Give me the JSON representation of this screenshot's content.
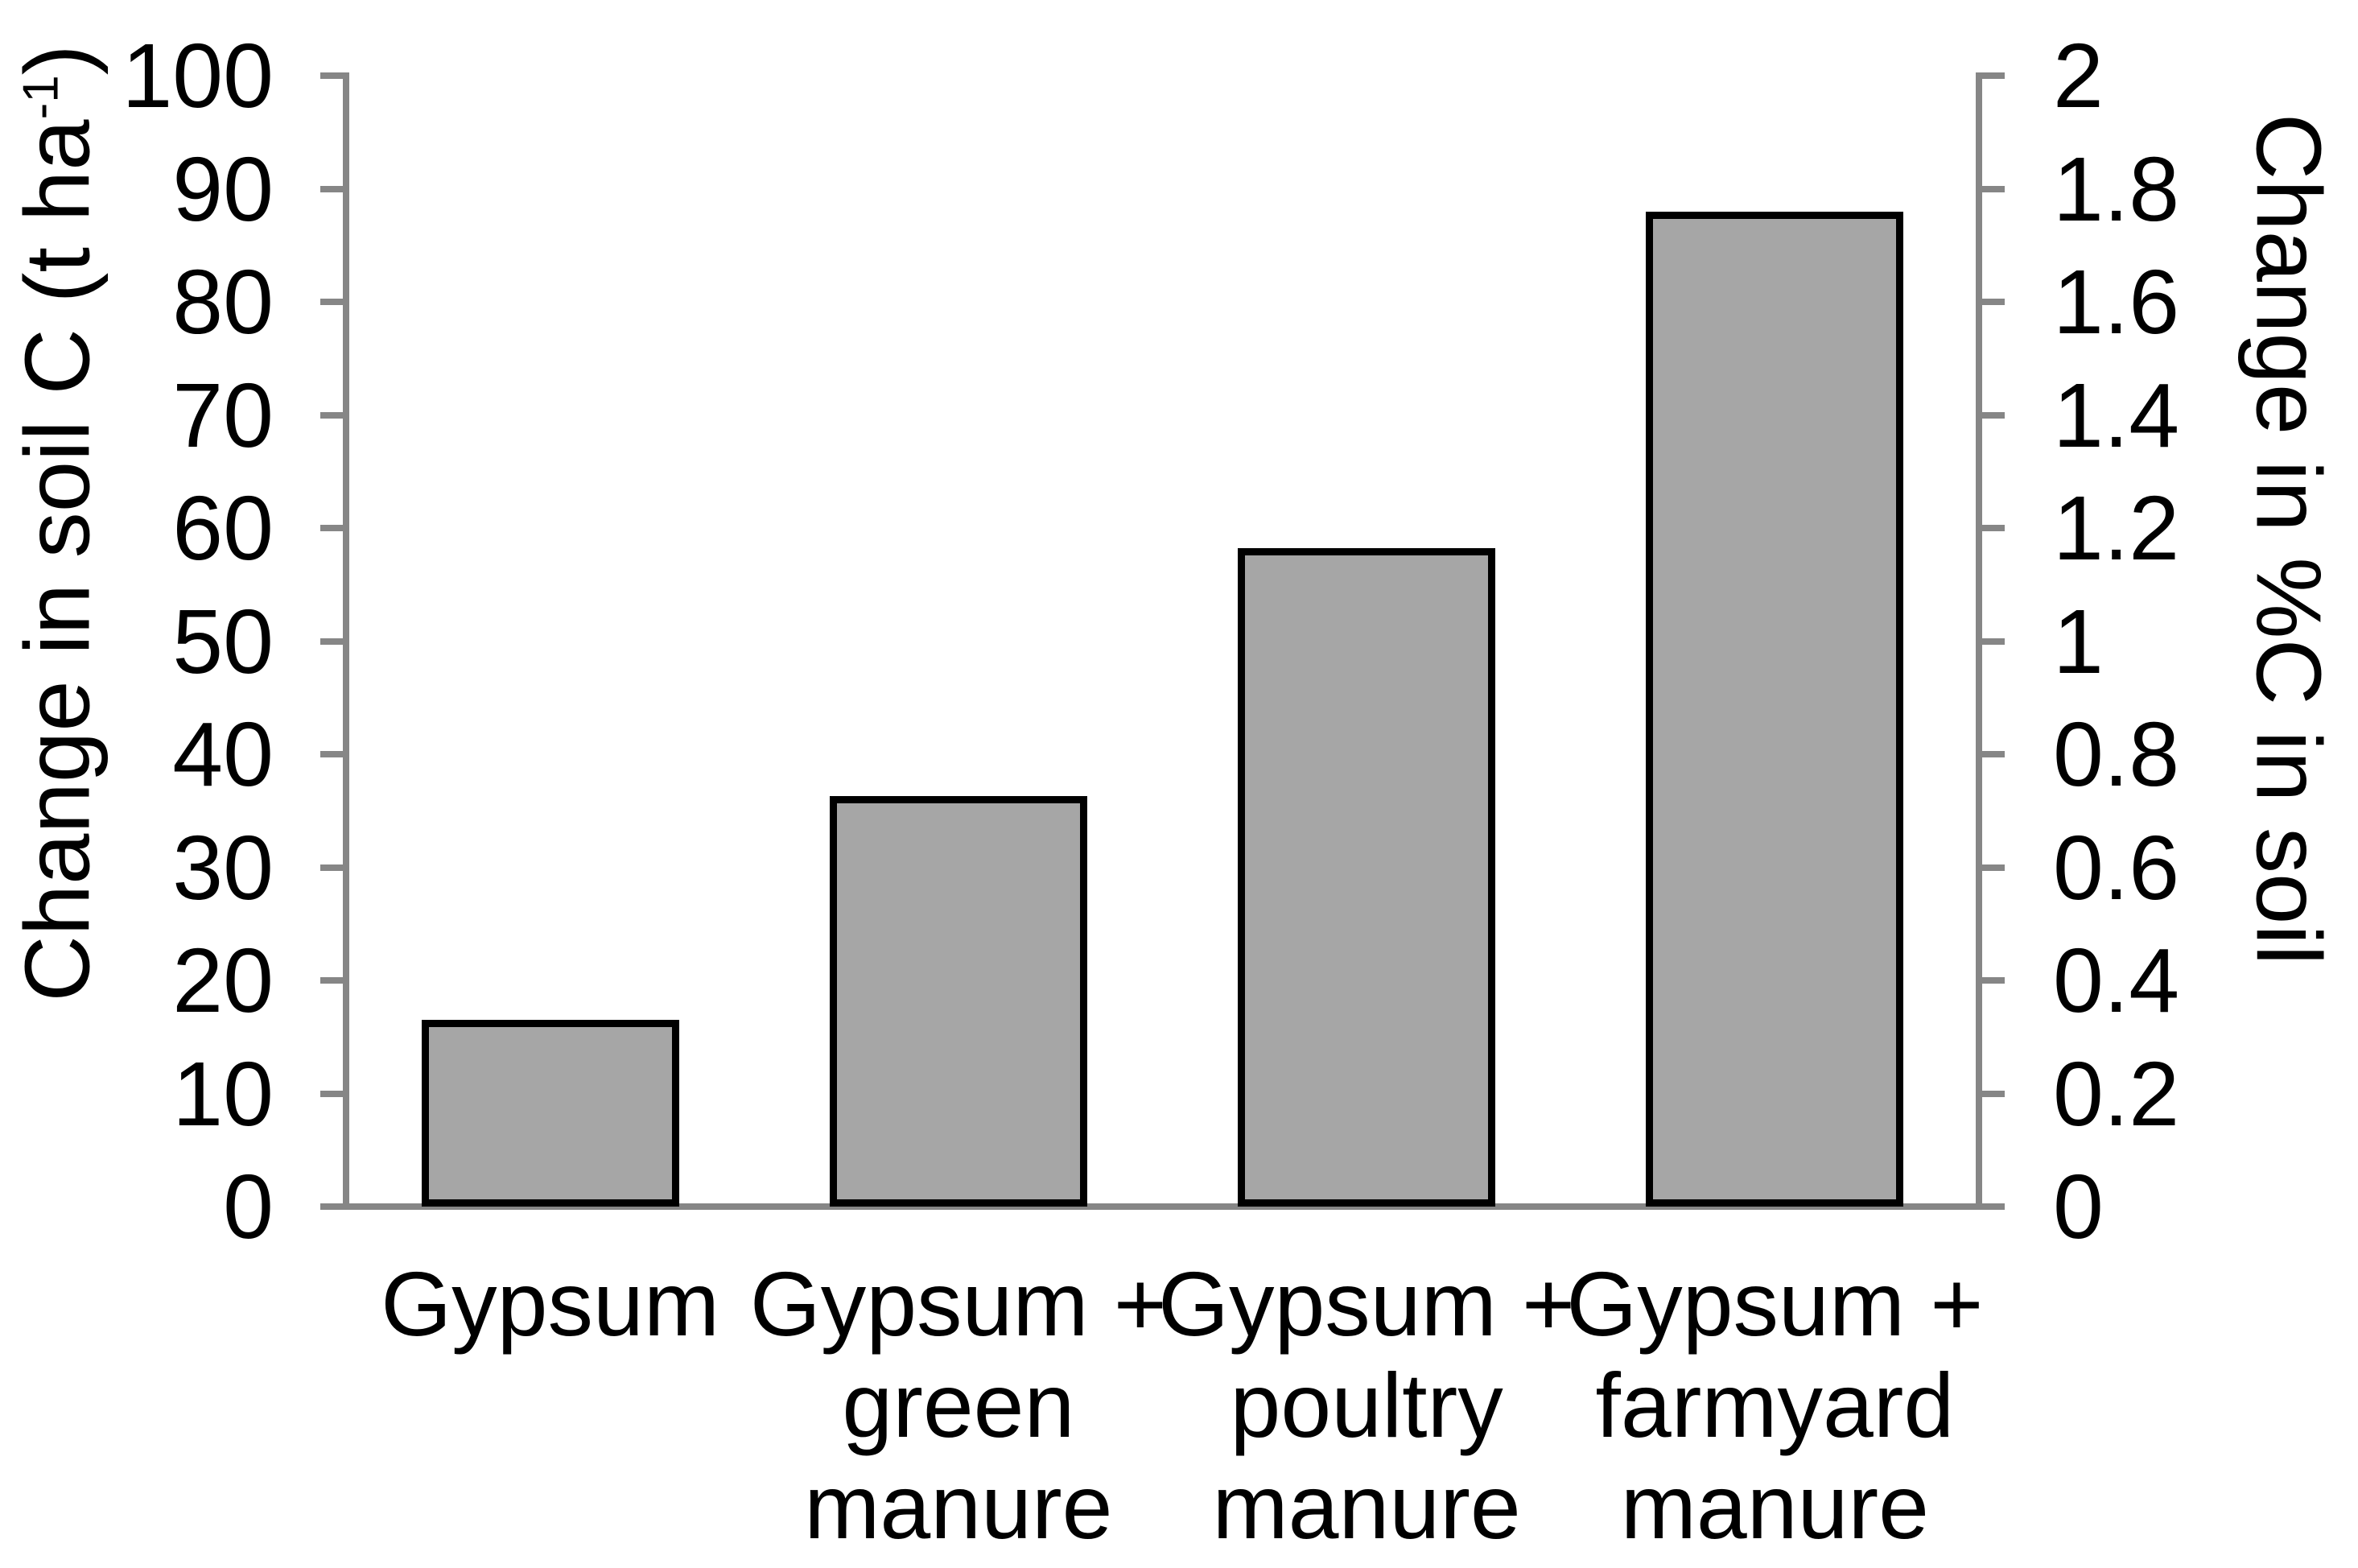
{
  "chart_data": {
    "type": "bar",
    "title": "",
    "categories": [
      "Gypsum",
      "Gypsum + green manure",
      "Gypsum + poultry manure",
      "Gypsum + farmyard manure"
    ],
    "category_label_lines": [
      [
        "Gypsum"
      ],
      [
        "Gypsum +",
        "green",
        "manure"
      ],
      [
        "Gypsum +",
        "poultry",
        "manure"
      ],
      [
        "Gypsum +",
        "farmyard",
        "manure"
      ]
    ],
    "series": [
      {
        "name": "Change in soil C (t ha-1)",
        "axis": "left",
        "values": [
          16.5,
          36.3,
          58.2,
          88.0
        ]
      },
      {
        "name": "Change in %C in soil",
        "axis": "right",
        "values": [
          0.33,
          0.73,
          1.16,
          1.76
        ]
      }
    ],
    "left_axis": {
      "label_pre": "Change in soil C (t ha",
      "label_sup": "-1",
      "label_post": ")",
      "min": 0,
      "max": 100,
      "step": 10,
      "tick_labels": [
        "100",
        "90",
        "80",
        "70",
        "60",
        "50",
        "40",
        "30",
        "20",
        "10",
        "0"
      ]
    },
    "right_axis": {
      "label": "Change in %C in soil",
      "min": 0,
      "max": 2,
      "step": 0.2,
      "tick_labels": [
        "2",
        "1.8",
        "1.6",
        "1.4",
        "1.2",
        "1",
        "0.8",
        "0.6",
        "0.4",
        "0.2",
        "0"
      ]
    },
    "grid": false,
    "legend": null,
    "colors": {
      "bar_fill": "#A6A6A6",
      "bar_border": "#000000",
      "axis_line": "#868686",
      "text": "#000000",
      "background": "#FFFFFF"
    }
  }
}
